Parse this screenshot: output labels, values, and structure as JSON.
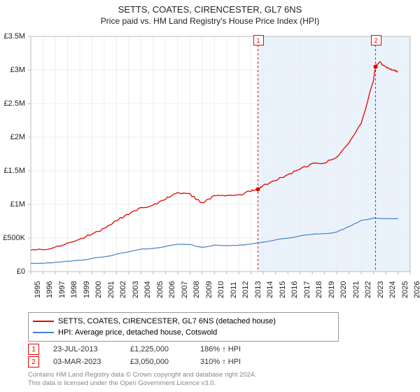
{
  "title": "SETTS, COATES, CIRENCESTER, GL7 6NS",
  "subtitle": "Price paid vs. HM Land Registry's House Price Index (HPI)",
  "chart": {
    "type": "line",
    "background_color": "#ffffff",
    "shaded_region": {
      "x_start": 2013.56,
      "x_end": 2026,
      "fill": "#eaf2fb"
    },
    "x_axis": {
      "min": 1995,
      "max": 2026,
      "ticks": [
        1995,
        1996,
        1997,
        1998,
        1999,
        2000,
        2001,
        2002,
        2003,
        2004,
        2005,
        2006,
        2007,
        2008,
        2009,
        2010,
        2011,
        2012,
        2013,
        2014,
        2015,
        2016,
        2017,
        2018,
        2019,
        2020,
        2021,
        2022,
        2023,
        2024,
        2025,
        2026
      ],
      "rotation": -90,
      "fontsize": 11,
      "grid_color": "#eeeeee"
    },
    "y_axis": {
      "min": 0,
      "max": 3500000,
      "ticks": [
        0,
        500000,
        1000000,
        1500000,
        2000000,
        2500000,
        3000000,
        3500000
      ],
      "tick_labels": [
        "£0",
        "£500K",
        "£1M",
        "£1.5M",
        "£2M",
        "£2.5M",
        "£3M",
        "£3.5M"
      ],
      "fontsize": 11,
      "grid_color": "#eeeeee"
    },
    "axis_line_color": "#bbbbbb",
    "series": [
      {
        "id": "property",
        "label": "SETTS, COATES, CIRENCESTER, GL7 6NS (detached house)",
        "color": "#e10600",
        "line_width": 1.3,
        "data": [
          [
            1995,
            320000
          ],
          [
            1996,
            330000
          ],
          [
            1997,
            360000
          ],
          [
            1998,
            420000
          ],
          [
            1999,
            480000
          ],
          [
            2000,
            560000
          ],
          [
            2001,
            640000
          ],
          [
            2002,
            760000
          ],
          [
            2003,
            860000
          ],
          [
            2004,
            950000
          ],
          [
            2005,
            990000
          ],
          [
            2006,
            1080000
          ],
          [
            2007,
            1180000
          ],
          [
            2008,
            1150000
          ],
          [
            2009,
            1020000
          ],
          [
            2010,
            1130000
          ],
          [
            2011,
            1120000
          ],
          [
            2012,
            1140000
          ],
          [
            2013,
            1200000
          ],
          [
            2013.56,
            1225000
          ],
          [
            2014,
            1280000
          ],
          [
            2015,
            1360000
          ],
          [
            2016,
            1440000
          ],
          [
            2017,
            1530000
          ],
          [
            2018,
            1600000
          ],
          [
            2019,
            1620000
          ],
          [
            2020,
            1700000
          ],
          [
            2021,
            1920000
          ],
          [
            2022,
            2200000
          ],
          [
            2023,
            2850000
          ],
          [
            2023.17,
            3050000
          ],
          [
            2023.5,
            3120000
          ],
          [
            2024,
            3040000
          ],
          [
            2024.5,
            3000000
          ],
          [
            2025,
            2980000
          ]
        ]
      },
      {
        "id": "hpi",
        "label": "HPI: Average price, detached house, Cotswold",
        "color": "#4a7fc5",
        "line_width": 1.2,
        "data": [
          [
            1995,
            120000
          ],
          [
            1996,
            125000
          ],
          [
            1997,
            135000
          ],
          [
            1998,
            150000
          ],
          [
            1999,
            170000
          ],
          [
            2000,
            195000
          ],
          [
            2001,
            220000
          ],
          [
            2002,
            260000
          ],
          [
            2003,
            300000
          ],
          [
            2004,
            330000
          ],
          [
            2005,
            345000
          ],
          [
            2006,
            375000
          ],
          [
            2007,
            410000
          ],
          [
            2008,
            400000
          ],
          [
            2009,
            360000
          ],
          [
            2010,
            395000
          ],
          [
            2011,
            390000
          ],
          [
            2012,
            395000
          ],
          [
            2013,
            410000
          ],
          [
            2014,
            440000
          ],
          [
            2015,
            470000
          ],
          [
            2016,
            500000
          ],
          [
            2017,
            530000
          ],
          [
            2018,
            555000
          ],
          [
            2019,
            565000
          ],
          [
            2020,
            590000
          ],
          [
            2021,
            670000
          ],
          [
            2022,
            760000
          ],
          [
            2023,
            800000
          ],
          [
            2024,
            790000
          ],
          [
            2025,
            785000
          ]
        ]
      }
    ],
    "vlines": [
      {
        "x": 2013.56,
        "color": "#e10600",
        "dash": "3,3"
      },
      {
        "x": 2023.17,
        "color": "#e10600",
        "dash": "3,3"
      }
    ],
    "point_markers": [
      {
        "x": 2013.56,
        "y": 1225000,
        "color": "#e10600",
        "radius": 3
      },
      {
        "x": 2023.17,
        "y": 3050000,
        "color": "#e10600",
        "radius": 3
      }
    ],
    "badge_markers": [
      {
        "num": "1",
        "x": 2013.56,
        "border": "#e10600",
        "text_color": "#e10600"
      },
      {
        "num": "2",
        "x": 2023.17,
        "border": "#e10600",
        "text_color": "#e10600"
      }
    ]
  },
  "legend": {
    "border_color": "#999999",
    "items": [
      {
        "color": "#e10600",
        "label": "SETTS, COATES, CIRENCESTER, GL7 6NS (detached house)"
      },
      {
        "color": "#4a7fc5",
        "label": "HPI: Average price, detached house, Cotswold"
      }
    ]
  },
  "markers_table": [
    {
      "num": "1",
      "border": "#e10600",
      "date": "23-JUL-2013",
      "price": "£1,225,000",
      "pct": "186% ↑ HPI"
    },
    {
      "num": "2",
      "border": "#e10600",
      "date": "03-MAR-2023",
      "price": "£3,050,000",
      "pct": "310% ↑ HPI"
    }
  ],
  "footer_line1": "Contains HM Land Registry data © Crown copyright and database right 2024.",
  "footer_line2": "This data is licensed under the Open Government Licence v3.0."
}
